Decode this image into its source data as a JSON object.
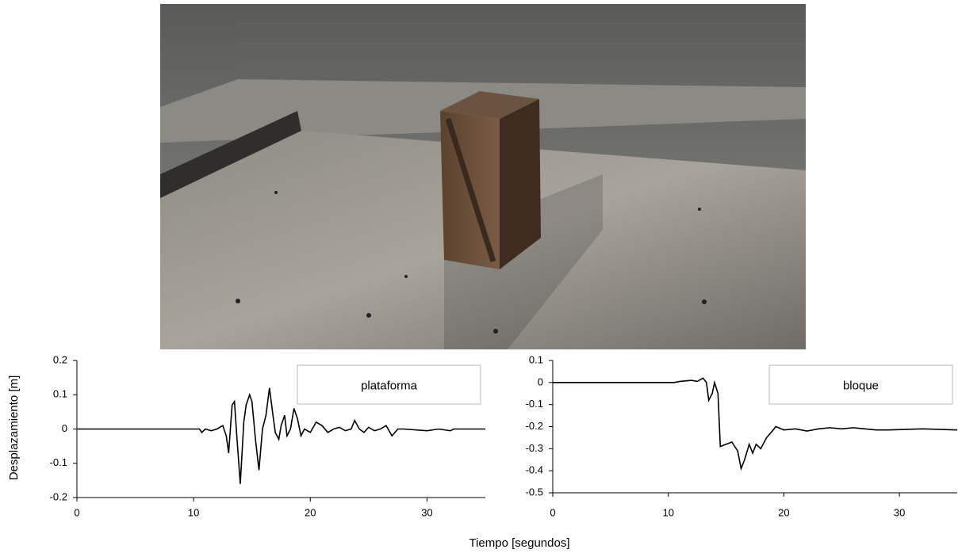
{
  "axes": {
    "y_label": "Desplazamiento [m]",
    "x_label": "Tiempo [segundos]"
  },
  "chart_data": [
    {
      "type": "line",
      "x": [
        0,
        10.5,
        10.7,
        11,
        11.5,
        12,
        12.5,
        12.8,
        13.0,
        13.3,
        13.5,
        13.7,
        14.0,
        14.3,
        14.5,
        14.8,
        15.0,
        15.3,
        15.6,
        15.9,
        16.2,
        16.5,
        16.8,
        17.0,
        17.3,
        17.5,
        17.8,
        18.0,
        18.3,
        18.6,
        18.9,
        19.2,
        19.5,
        20.0,
        20.5,
        21.0,
        21.5,
        22.0,
        22.5,
        23.0,
        23.5,
        23.8,
        24.2,
        24.6,
        25.0,
        25.5,
        26.0,
        26.5,
        27.0,
        27.5,
        28,
        30,
        31,
        32,
        32.3,
        35
      ],
      "series": [
        {
          "name": "plataforma",
          "color": "#000000",
          "values": [
            0,
            0,
            -0.01,
            0,
            -0.005,
            0,
            0.01,
            -0.02,
            -0.07,
            0.07,
            0.08,
            -0.02,
            -0.16,
            0.02,
            0.07,
            0.1,
            0.08,
            -0.03,
            -0.12,
            0.0,
            0.04,
            0.12,
            0.04,
            -0.01,
            -0.03,
            0.01,
            0.04,
            -0.02,
            0.0,
            0.06,
            0.03,
            -0.02,
            0.0,
            -0.01,
            0.02,
            0.01,
            -0.01,
            0.0,
            0.005,
            -0.005,
            0.0,
            0.025,
            0.0,
            -0.01,
            0.005,
            -0.005,
            0.0,
            0.01,
            -0.02,
            0.0,
            0,
            -0.005,
            0,
            -0.005,
            0,
            0
          ]
        }
      ],
      "xlim": [
        0,
        35
      ],
      "xticks": [
        0,
        10,
        20,
        30
      ],
      "ylim": [
        -0.2,
        0.2
      ],
      "yticks": [
        -0.2,
        -0.1,
        0,
        0.1,
        0.2
      ],
      "grid": false,
      "legend": "upper right"
    },
    {
      "type": "line",
      "x": [
        0,
        10.5,
        11,
        12,
        12.5,
        13,
        13.3,
        13.5,
        13.8,
        14.0,
        14.3,
        14.5,
        15,
        15.5,
        16,
        16.3,
        16.6,
        17,
        17.3,
        17.6,
        18,
        18.5,
        19,
        19.3,
        20,
        21,
        22,
        23,
        24,
        25,
        26,
        27,
        28,
        29,
        32,
        35
      ],
      "series": [
        {
          "name": "bloque",
          "color": "#000000",
          "values": [
            0,
            0,
            0.005,
            0.01,
            0.005,
            0.02,
            0.0,
            -0.08,
            -0.05,
            0.0,
            -0.05,
            -0.29,
            -0.28,
            -0.27,
            -0.31,
            -0.39,
            -0.35,
            -0.28,
            -0.32,
            -0.28,
            -0.3,
            -0.25,
            -0.22,
            -0.2,
            -0.215,
            -0.21,
            -0.22,
            -0.21,
            -0.205,
            -0.21,
            -0.205,
            -0.21,
            -0.215,
            -0.215,
            -0.21,
            -0.215
          ]
        }
      ],
      "xlim": [
        0,
        35
      ],
      "xticks": [
        0,
        10,
        20,
        30
      ],
      "ylim": [
        -0.5,
        0.1
      ],
      "yticks": [
        -0.5,
        -0.4,
        -0.3,
        -0.2,
        -0.1,
        0,
        0.1
      ],
      "grid": false,
      "legend": "upper right"
    }
  ]
}
